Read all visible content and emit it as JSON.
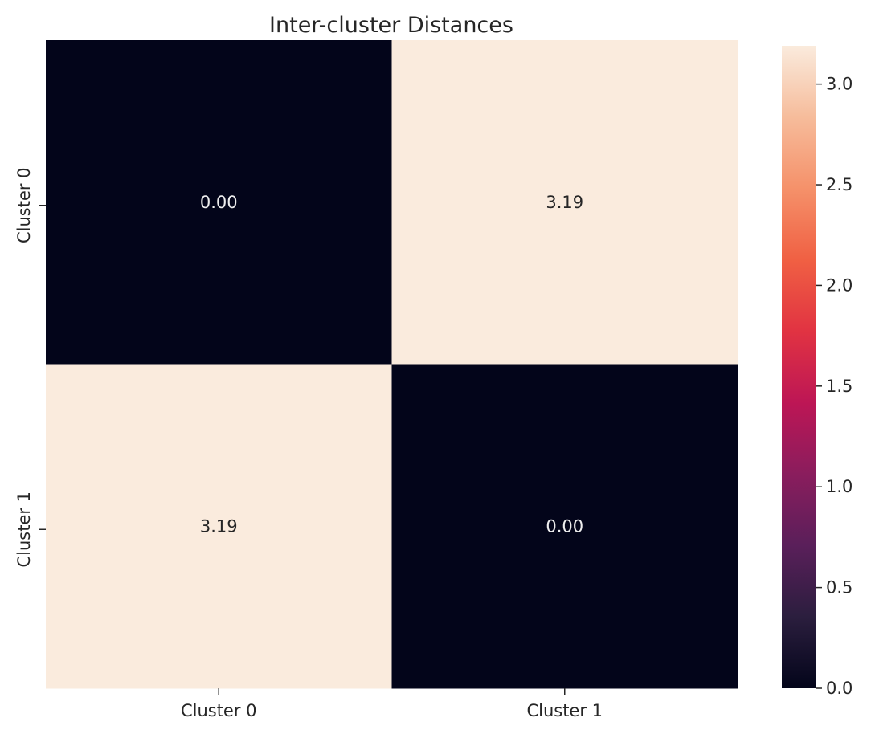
{
  "chart_data": {
    "type": "heatmap",
    "title": "Inter-cluster Distances",
    "x_tick_labels": [
      "Cluster 0",
      "Cluster 1"
    ],
    "y_tick_labels": [
      "Cluster 0",
      "Cluster 1"
    ],
    "matrix": [
      [
        0.0,
        3.19
      ],
      [
        3.19,
        0.0
      ]
    ],
    "annotations": [
      [
        "0.00",
        "3.19"
      ],
      [
        "3.19",
        "0.00"
      ]
    ],
    "colorbar": {
      "range": [
        0.0,
        3.19
      ],
      "tick_values": [
        0.0,
        0.5,
        1.0,
        1.5,
        2.0,
        2.5,
        3.0
      ],
      "tick_labels": [
        "0.0",
        "0.5",
        "1.0",
        "1.5",
        "2.0",
        "2.5",
        "3.0"
      ]
    },
    "colormap": "rocket",
    "colormap_stops": [
      "#03051a",
      "#2b1e3e",
      "#5a1f5a",
      "#8a1d5d",
      "#bd1655",
      "#e13342",
      "#f06043",
      "#f5916a",
      "#f6bc9b",
      "#faebdd"
    ],
    "annotation_colors": {
      "light": "#eeeeee",
      "dark": "#262626"
    },
    "grid": false
  }
}
